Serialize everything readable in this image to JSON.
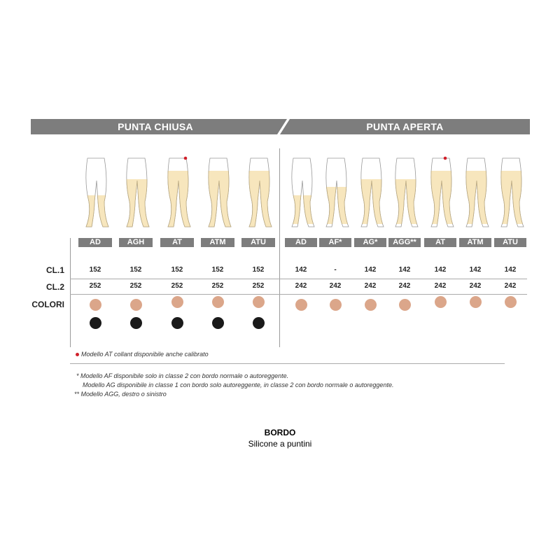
{
  "header": {
    "left": "PUNTA CHIUSA",
    "right": "PUNTA APERTA"
  },
  "rows": {
    "cl1": "CL.1",
    "cl2": "CL.2",
    "colori": "COLORI"
  },
  "colors": {
    "skin": "#dba68a",
    "black": "#1a1a1a",
    "header_gray": "#7d7d7d",
    "stocking": "#f7e6bd",
    "marker": "#d0202a"
  },
  "closed": [
    {
      "label": "AD",
      "cl1": "152",
      "cl2": "252",
      "colors": [
        "skin",
        "black"
      ]
    },
    {
      "label": "AGH",
      "cl1": "152",
      "cl2": "252",
      "colors": [
        "skin",
        "black"
      ]
    },
    {
      "label": "AT",
      "cl1": "152",
      "cl2": "252",
      "colors": [
        "skin",
        "black"
      ],
      "marked": true
    },
    {
      "label": "ATM",
      "cl1": "152",
      "cl2": "252",
      "colors": [
        "skin",
        "black"
      ]
    },
    {
      "label": "ATU",
      "cl1": "152",
      "cl2": "252",
      "colors": [
        "skin",
        "black"
      ]
    }
  ],
  "open": [
    {
      "label": "AD",
      "cl1": "142",
      "cl2": "242",
      "colors": [
        "skin"
      ]
    },
    {
      "label": "AF*",
      "cl1": "-",
      "cl2": "242",
      "colors": [
        "skin"
      ]
    },
    {
      "label": "AG*",
      "cl1": "142",
      "cl2": "242",
      "colors": [
        "skin"
      ]
    },
    {
      "label": "AGG**",
      "cl1": "142",
      "cl2": "242",
      "colors": [
        "skin"
      ]
    },
    {
      "label": "AT",
      "cl1": "142",
      "cl2": "242",
      "colors": [
        "skin"
      ],
      "marked": true
    },
    {
      "label": "ATM",
      "cl1": "142",
      "cl2": "242",
      "colors": [
        "skin"
      ]
    },
    {
      "label": "ATU",
      "cl1": "142",
      "cl2": "242",
      "colors": [
        "skin"
      ]
    }
  ],
  "notes": {
    "at": "Modello AT collant disponibile anche calibrato",
    "af": "*  Modello AF disponibile solo in classe 2 con bordo normale o autoreggente.",
    "ag": "Modello AG disponibile in classe 1 con bordo solo autoreggente, in classe 2 con bordo normale o autoreggente.",
    "agg": "** Modello AGG, destro o sinistro"
  },
  "bordo": {
    "title": "BORDO",
    "value": "Silicone a puntini"
  }
}
